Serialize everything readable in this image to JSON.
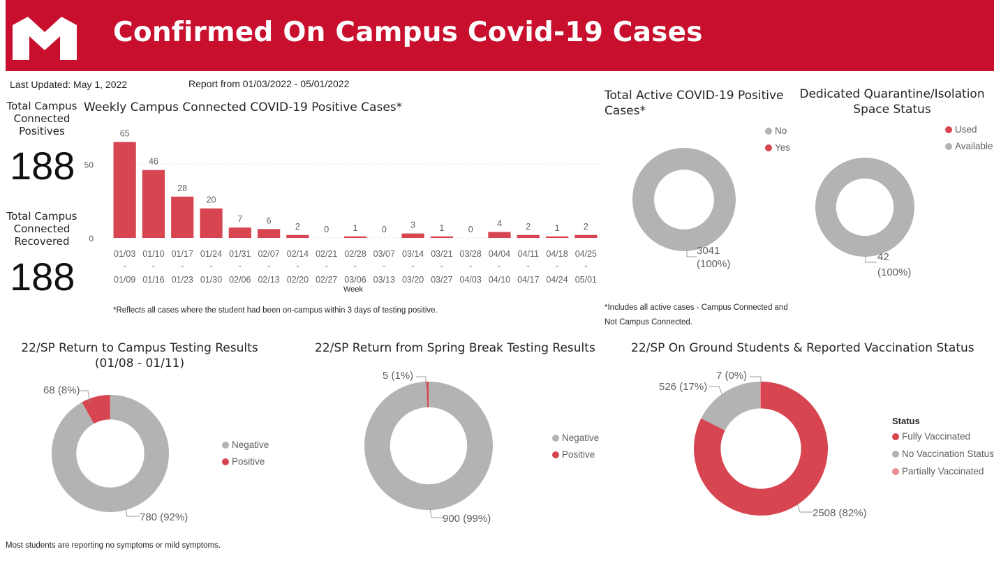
{
  "header": {
    "title": "Confirmed On Campus Covid-19 Cases"
  },
  "meta": {
    "last_updated": "Last Updated: May 1, 2022",
    "report_range": "Report from 01/03/2022 - 05/01/2022"
  },
  "kpis": {
    "positives_label": "Total Campus Connected Positives",
    "positives_value": "188",
    "recovered_label": "Total Campus Connected Recovered",
    "recovered_value": "188"
  },
  "colors": {
    "red": "#d64550",
    "gray": "#b3b3b3",
    "pink": "#e88c96",
    "brand": "#c8102e"
  },
  "weekly": {
    "title": "Weekly Campus Connected COVID-19 Positive Cases*",
    "footnote": "*Reflects all cases where the student had been on-campus within 3 days of testing positive.",
    "chart_data": {
      "type": "bar",
      "xlabel": "Week",
      "ylabel": "",
      "ylim": [
        0,
        70
      ],
      "yticks": [
        "0",
        "50"
      ],
      "categories": [
        [
          "01/03",
          "-",
          "01/09"
        ],
        [
          "01/10",
          "-",
          "01/16"
        ],
        [
          "01/17",
          "-",
          "01/23"
        ],
        [
          "01/24",
          "-",
          "01/30"
        ],
        [
          "01/31",
          "-",
          "02/06"
        ],
        [
          "02/07",
          "-",
          "02/13"
        ],
        [
          "02/14",
          "-",
          "02/20"
        ],
        [
          "02/21",
          "-",
          "02/27"
        ],
        [
          "02/28",
          "-",
          "03/06"
        ],
        [
          "03/07",
          "-",
          "03/13"
        ],
        [
          "03/14",
          "-",
          "03/20"
        ],
        [
          "03/21",
          "-",
          "03/27"
        ],
        [
          "03/28",
          "-",
          "04/03"
        ],
        [
          "04/04",
          "-",
          "04/10"
        ],
        [
          "04/11",
          "-",
          "04/17"
        ],
        [
          "04/18",
          "-",
          "04/24"
        ],
        [
          "04/25",
          "-",
          "05/01"
        ]
      ],
      "values": [
        65,
        46,
        28,
        20,
        7,
        6,
        2,
        0,
        1,
        0,
        3,
        1,
        0,
        4,
        2,
        1,
        2
      ]
    }
  },
  "donuts": {
    "active": {
      "title": "Total Active COVID-19 Positive Cases*",
      "note_line1": "*Includes all active cases - Campus Connected and",
      "note_line2": "Not Campus Connected.",
      "legend": [
        {
          "label": "No",
          "color": "#b3b3b3"
        },
        {
          "label": "Yes",
          "color": "#d64550"
        }
      ],
      "labels": [
        "3041",
        "(100%)"
      ],
      "chart_data": {
        "type": "pie",
        "categories": [
          "No",
          "Yes"
        ],
        "values": [
          3041,
          0
        ]
      }
    },
    "quarantine": {
      "title": "Dedicated Quarantine/Isolation Space Status",
      "legend": [
        {
          "label": "Used",
          "color": "#d64550"
        },
        {
          "label": "Available",
          "color": "#b3b3b3"
        }
      ],
      "labels": [
        "42",
        "(100%)"
      ],
      "chart_data": {
        "type": "pie",
        "categories": [
          "Used",
          "Available"
        ],
        "values": [
          0,
          42
        ]
      }
    },
    "return": {
      "title_line1": "22/SP Return to Campus Testing Results",
      "title_line2": "(01/08 - 01/11)",
      "legend": [
        {
          "label": "Negative",
          "color": "#b3b3b3"
        },
        {
          "label": "Positive",
          "color": "#d64550"
        }
      ],
      "labels": [
        "68 (8%)",
        "780 (92%)"
      ],
      "chart_data": {
        "type": "pie",
        "categories": [
          "Negative",
          "Positive"
        ],
        "values": [
          780,
          68
        ]
      }
    },
    "spring": {
      "title": "22/SP Return from Spring Break Testing Results",
      "legend": [
        {
          "label": "Negative",
          "color": "#b3b3b3"
        },
        {
          "label": "Positive",
          "color": "#d64550"
        }
      ],
      "labels": [
        "5 (1%)",
        "900 (99%)"
      ],
      "chart_data": {
        "type": "pie",
        "categories": [
          "Negative",
          "Positive"
        ],
        "values": [
          900,
          5
        ]
      }
    },
    "vax": {
      "title": "22/SP On Ground Students & Reported Vaccination Status",
      "legend_title": "Status",
      "legend": [
        {
          "label": "Fully Vaccinated",
          "color": "#d64550"
        },
        {
          "label": "No Vaccination Status",
          "color": "#b3b3b3"
        },
        {
          "label": "Partially Vaccinated",
          "color": "#e88c96"
        }
      ],
      "labels": [
        "7 (0%)",
        "526 (17%)",
        "2508 (82%)"
      ],
      "chart_data": {
        "type": "pie",
        "categories": [
          "Fully Vaccinated",
          "No Vaccination Status",
          "Partially Vaccinated"
        ],
        "values": [
          2508,
          526,
          7
        ]
      }
    }
  },
  "footer": {
    "note": "Most students are reporting no symptoms or mild symptoms."
  }
}
